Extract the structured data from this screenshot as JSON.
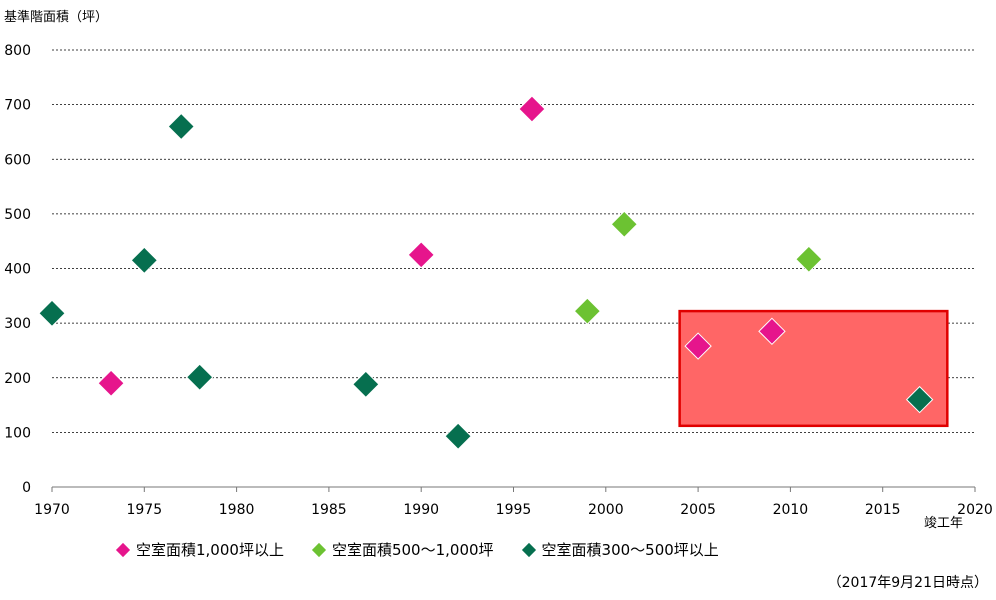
{
  "chart_data": {
    "type": "scatter",
    "ylabel": "基準階面積（坪）",
    "xlabel": "竣工年",
    "xlim": [
      1970,
      2020
    ],
    "ylim": [
      0,
      800
    ],
    "xticks": [
      1970,
      1975,
      1980,
      1985,
      1990,
      1995,
      2000,
      2005,
      2010,
      2015,
      2020
    ],
    "yticks": [
      0,
      100,
      200,
      300,
      400,
      500,
      600,
      700,
      800
    ],
    "grid": "horizontal-dashed",
    "legend_position": "bottom",
    "series": [
      {
        "name": "空室面積1,000坪以上",
        "color": "#e6158c",
        "points": [
          [
            1973.2,
            190
          ],
          [
            1990,
            425
          ],
          [
            1996,
            692
          ],
          [
            2005,
            258
          ],
          [
            2009,
            285
          ]
        ]
      },
      {
        "name": "空室面積500～1,000坪",
        "color": "#6cc232",
        "points": [
          [
            1999,
            322
          ],
          [
            2001,
            481
          ],
          [
            2011,
            417
          ]
        ]
      },
      {
        "name": "空室面積300～500坪以上",
        "color": "#066f4f",
        "points": [
          [
            1970,
            318
          ],
          [
            1975,
            415
          ],
          [
            1977,
            660
          ],
          [
            1978,
            201
          ],
          [
            1987,
            188
          ],
          [
            1992,
            93
          ],
          [
            2017,
            160
          ]
        ]
      }
    ],
    "highlight_box": {
      "x_range": [
        2004,
        2018.5
      ],
      "y_range": [
        112,
        322
      ],
      "fill": "#ff6666",
      "stroke": "#e00000"
    },
    "note": "（2017年9月21日時点）"
  }
}
